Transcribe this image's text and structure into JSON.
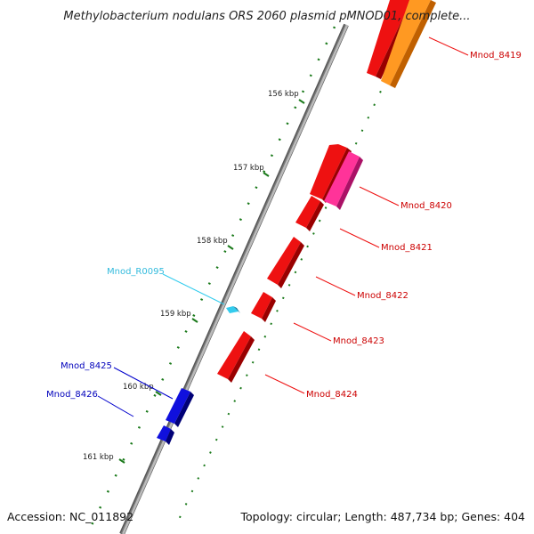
{
  "title": "Methylobacterium nodulans ORS 2060 plasmid pMNOD01, complete...",
  "footer": {
    "accession": "Accession: NC_011892",
    "summary": "Topology: circular; Length: 487,734 bp; Genes: 404"
  },
  "colors": {
    "gene_forward": "#ee1111",
    "gene_orange": "#ff9922",
    "gene_pink": "#ff3399",
    "gene_blue": "#1010dd",
    "rna_cyan": "#33ccee",
    "label_red": "#cc0000",
    "label_blue": "#0000bb",
    "label_cyan": "#33bbdd",
    "tick_green": "#006600",
    "backbone": "#888888"
  },
  "ticks": [
    "156 kbp",
    "157 kbp",
    "158 kbp",
    "159 kbp",
    "160 kbp",
    "161 kbp"
  ],
  "genes": [
    {
      "id": "Mnod_8419",
      "label": "Mnod_8419"
    },
    {
      "id": "Mnod_8420",
      "label": "Mnod_8420"
    },
    {
      "id": "Mnod_8421",
      "label": "Mnod_8421"
    },
    {
      "id": "Mnod_8422",
      "label": "Mnod_8422"
    },
    {
      "id": "Mnod_8423",
      "label": "Mnod_8423"
    },
    {
      "id": "Mnod_8424",
      "label": "Mnod_8424"
    },
    {
      "id": "Mnod_R0095",
      "label": "Mnod_R0095"
    },
    {
      "id": "Mnod_8425",
      "label": "Mnod_8425"
    },
    {
      "id": "Mnod_8426",
      "label": "Mnod_8426"
    }
  ]
}
